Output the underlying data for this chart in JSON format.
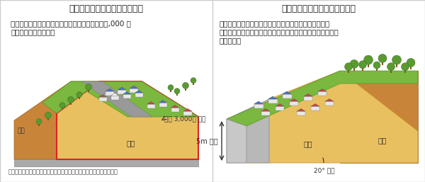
{
  "bg_color": "#ffffff",
  "border_color": "#cccccc",
  "left_title": "【谷埋め型大規模盛土造成地】",
  "left_desc_line1": "谷や沢を埋め立てた造成宅地で、盛土の面積が３,000 平",
  "left_desc_line2": "方メートル以上のもの",
  "left_label_chiyama": "地山",
  "left_label_mori": "盛土",
  "left_label_mori_area": "盛土 3,000㎡ 以上",
  "right_title": "【腹付け型大規模盛土造成地】",
  "right_desc_line1": "傾斜地に盛土した造成宅地で、盛土する前の地盤面の水",
  "right_desc_line2": "平面に対する角度が２０度以上かつ盛土の高さが５メートル",
  "right_desc_line3": "以上のもの",
  "right_label_5m": "5m 以上",
  "right_label_mori": "盛土",
  "right_label_chiyama": "地山",
  "right_label_20deg": "20° 以上",
  "source_text": "出典：大規模盛土造成地の滑動崩落対策推進ガイドライン及び同解説",
  "embankment_color": "#e8c060",
  "embankment_dark": "#c8953a",
  "green_color": "#5a9a30",
  "grass_color": "#7ab840",
  "house_wall": "#e8e8e8",
  "house_roof_blue": "#4477cc",
  "house_roof_red": "#cc4444",
  "house_roof_brown": "#996633",
  "tree_trunk": "#885522",
  "text_color": "#222222",
  "title_fontsize": 9,
  "desc_fontsize": 7.5,
  "label_fontsize": 6.5,
  "source_fontsize": 6
}
